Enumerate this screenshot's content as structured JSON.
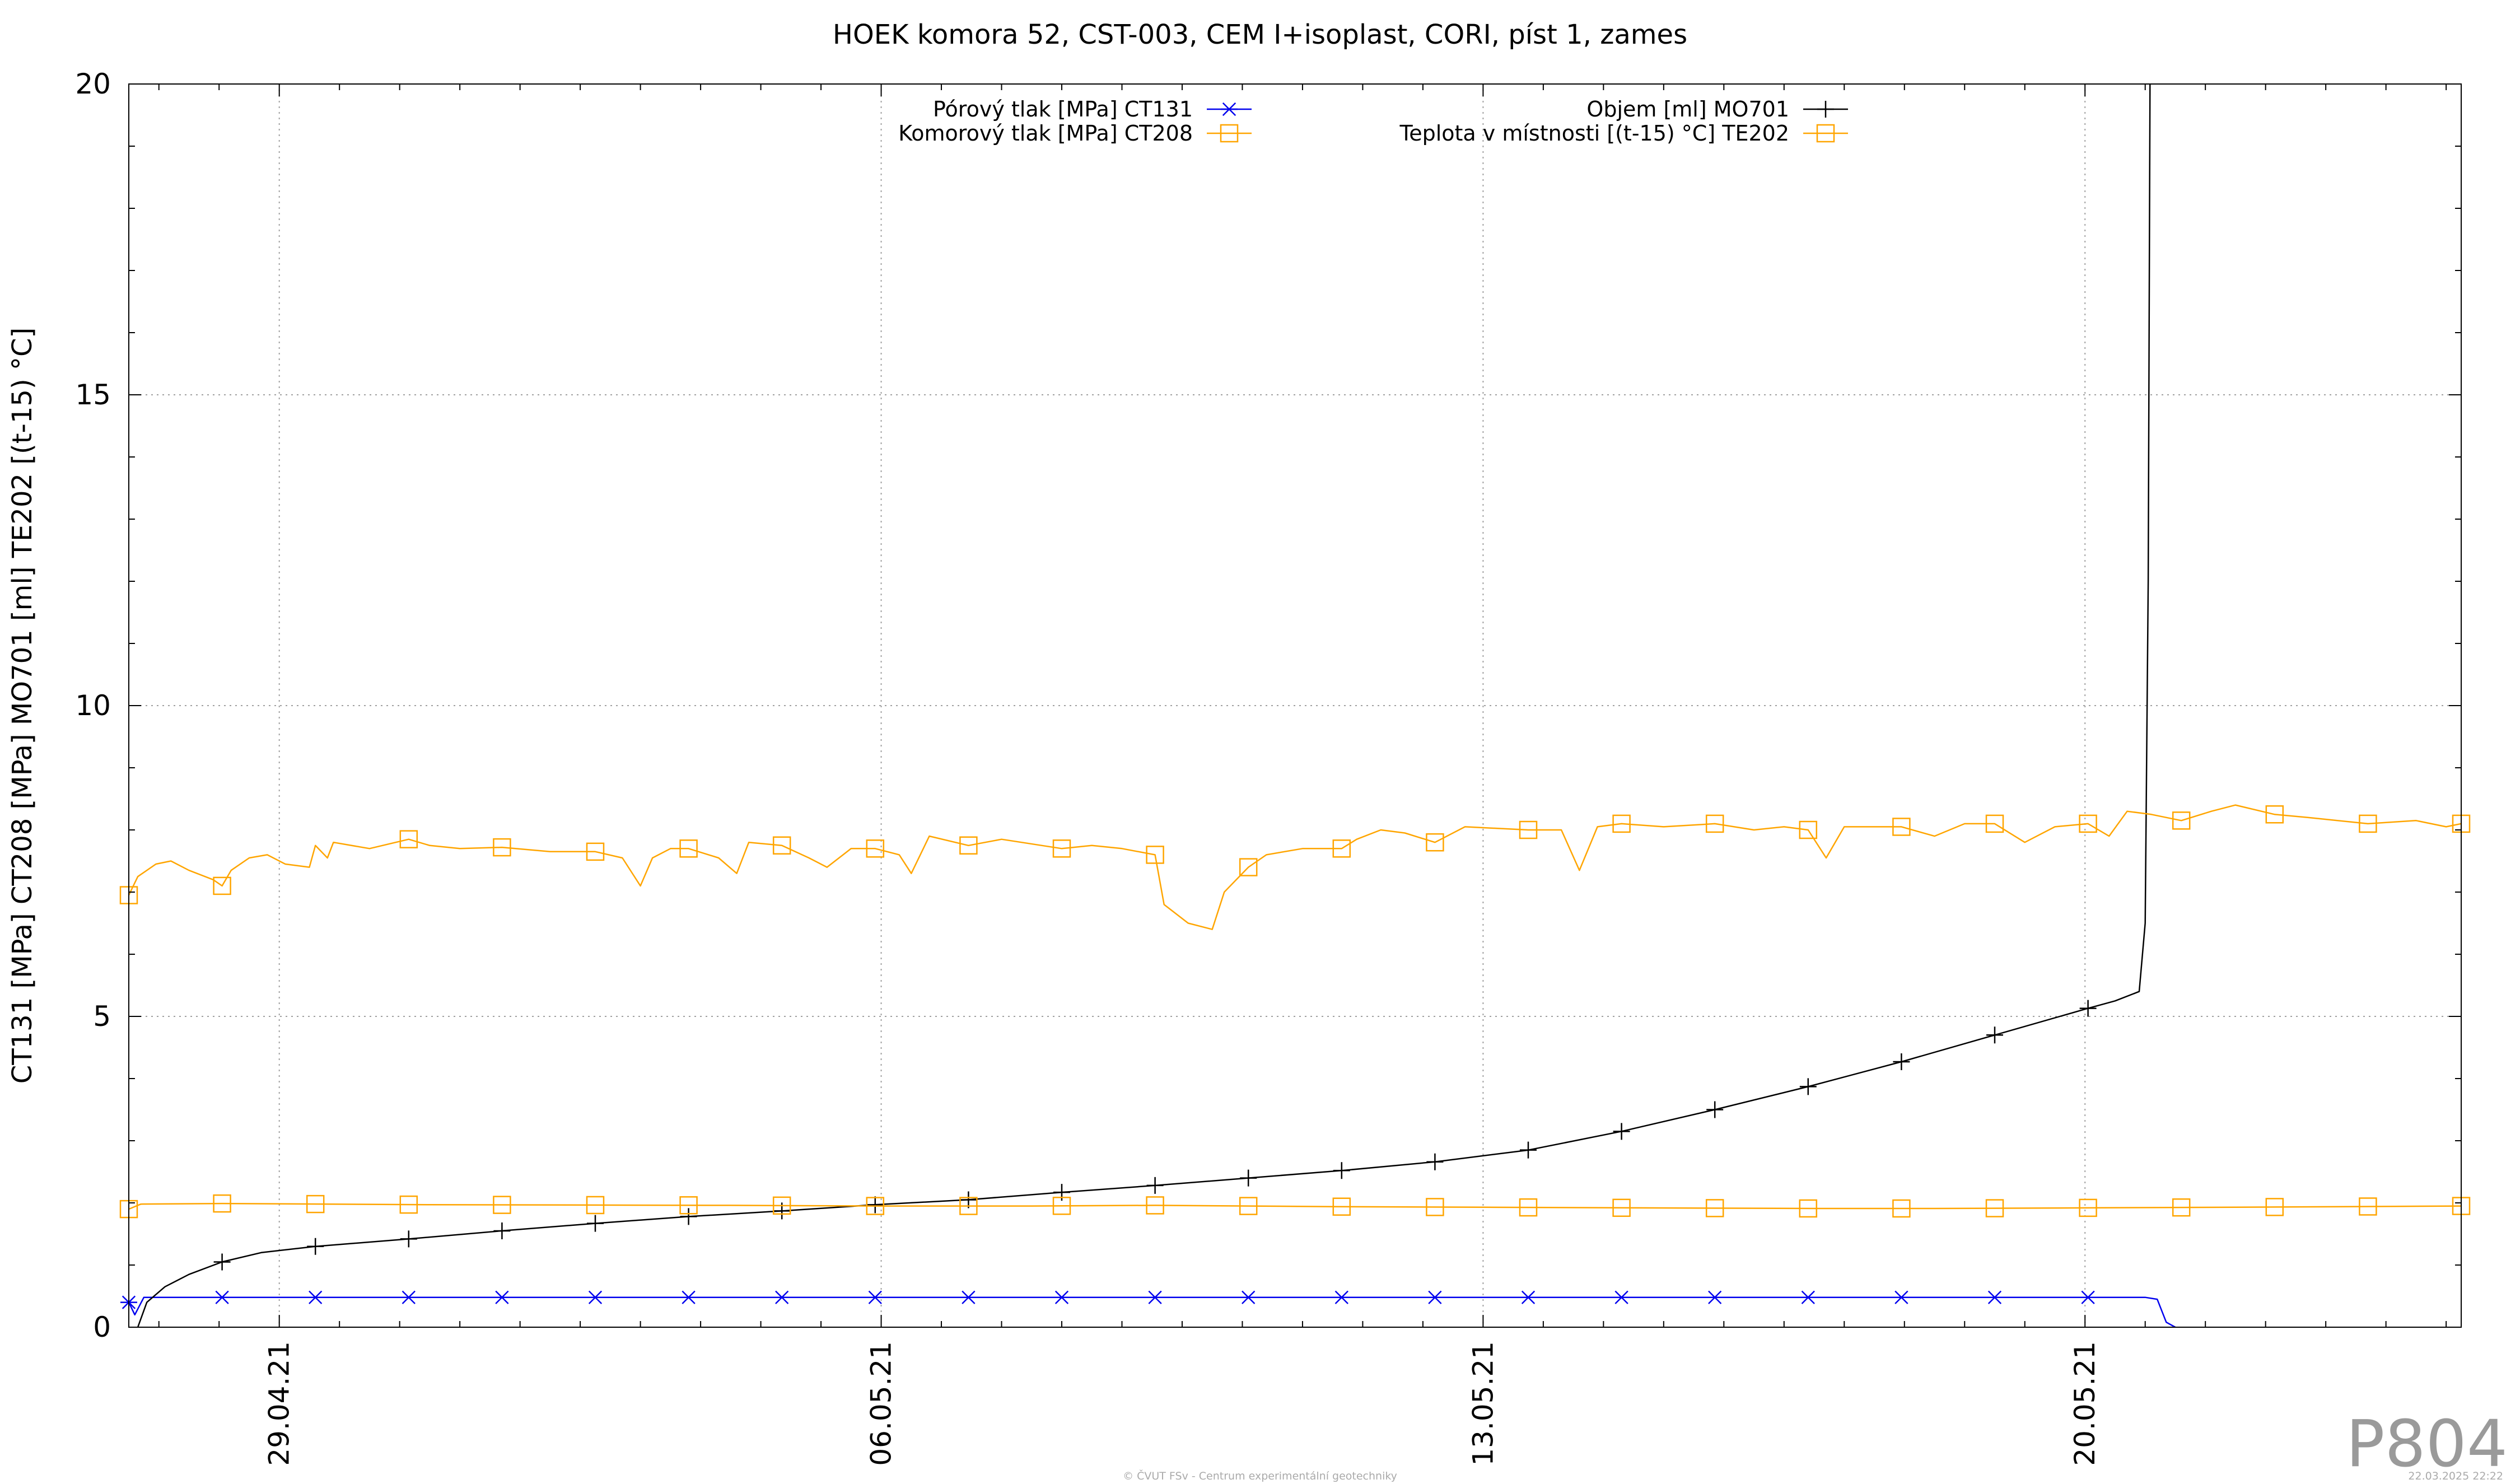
{
  "chart_data": {
    "type": "line",
    "title": "HOEK komora 52, CST-003, CEM I+isoplast, CORI, píst 1, zames",
    "ylabel": "CT131 [MPa] CT208 [MPa] MO701 [ml] TE202 [(t-15) °C]",
    "xlabel": "",
    "x_unit": "days",
    "xlim": [
      0,
      38.75
    ],
    "ylim": [
      0,
      20
    ],
    "y_ticks": [
      0,
      5,
      10,
      15,
      20
    ],
    "x_ticks": [
      {
        "label": "29.04.21",
        "x": 2.5
      },
      {
        "label": "06.05.21",
        "x": 12.5
      },
      {
        "label": "13.05.21",
        "x": 22.5
      },
      {
        "label": "20.05.21",
        "x": 32.5
      }
    ],
    "grid": true,
    "legend_position": "top",
    "series": [
      {
        "name": "Pórový tlak [MPa] CT131",
        "color": "#0000ee",
        "marker": "asterisk",
        "points": [
          [
            0,
            0.4
          ],
          [
            0.1,
            0.2
          ],
          [
            0.25,
            0.48
          ],
          [
            1,
            0.48
          ],
          [
            5,
            0.48
          ],
          [
            10,
            0.48
          ],
          [
            15,
            0.48
          ],
          [
            20,
            0.48
          ],
          [
            25,
            0.48
          ],
          [
            30,
            0.48
          ],
          [
            33.5,
            0.48
          ],
          [
            33.7,
            0.45
          ],
          [
            33.85,
            0.08
          ],
          [
            34.0,
            0.0
          ]
        ],
        "markers_x": [
          0,
          1.55,
          3.1,
          4.65,
          6.2,
          7.75,
          9.3,
          10.85,
          12.4,
          13.95,
          15.5,
          17.05,
          18.6,
          20.15,
          21.7,
          23.25,
          24.8,
          26.35,
          27.9,
          29.45,
          31.0,
          32.55
        ]
      },
      {
        "name": "Objem [ml] MO701",
        "color": "#000000",
        "marker": "plus",
        "points": [
          [
            0.15,
            0.0
          ],
          [
            0.3,
            0.4
          ],
          [
            0.6,
            0.65
          ],
          [
            1.0,
            0.85
          ],
          [
            1.55,
            1.05
          ],
          [
            2.2,
            1.2
          ],
          [
            3.1,
            1.3
          ],
          [
            4.65,
            1.42
          ],
          [
            6.2,
            1.55
          ],
          [
            7.75,
            1.67
          ],
          [
            9.3,
            1.78
          ],
          [
            10.85,
            1.87
          ],
          [
            12.4,
            1.97
          ],
          [
            13.95,
            2.05
          ],
          [
            15.5,
            2.17
          ],
          [
            17.05,
            2.28
          ],
          [
            18.6,
            2.4
          ],
          [
            20.15,
            2.52
          ],
          [
            21.7,
            2.66
          ],
          [
            23.25,
            2.85
          ],
          [
            24.8,
            3.15
          ],
          [
            26.35,
            3.5
          ],
          [
            27.9,
            3.87
          ],
          [
            29.45,
            4.27
          ],
          [
            31.0,
            4.7
          ],
          [
            32.55,
            5.13
          ],
          [
            33.0,
            5.25
          ],
          [
            33.4,
            5.4
          ],
          [
            33.5,
            6.5
          ],
          [
            33.55,
            12.0
          ],
          [
            33.58,
            20.0
          ]
        ],
        "markers_x": [
          1.55,
          3.1,
          4.65,
          6.2,
          7.75,
          9.3,
          10.85,
          12.4,
          13.95,
          15.5,
          17.05,
          18.6,
          20.15,
          21.7,
          23.25,
          24.8,
          26.35,
          27.9,
          29.45,
          31.0,
          32.55
        ]
      },
      {
        "name": "Komorový tlak [MPa] CT208",
        "color": "#ffa500",
        "marker": "square",
        "points": [
          [
            0,
            1.9
          ],
          [
            0.2,
            1.98
          ],
          [
            1.55,
            1.99
          ],
          [
            5,
            1.97
          ],
          [
            10,
            1.96
          ],
          [
            12.4,
            1.95
          ],
          [
            15,
            1.95
          ],
          [
            17.05,
            1.96
          ],
          [
            20,
            1.94
          ],
          [
            22.5,
            1.93
          ],
          [
            25,
            1.92
          ],
          [
            28,
            1.91
          ],
          [
            30,
            1.91
          ],
          [
            32.55,
            1.92
          ],
          [
            35,
            1.93
          ],
          [
            38.75,
            1.95
          ]
        ],
        "markers_x": [
          0,
          1.55,
          3.1,
          4.65,
          6.2,
          7.75,
          9.3,
          10.85,
          12.4,
          13.95,
          15.5,
          17.05,
          18.6,
          20.15,
          21.7,
          23.25,
          24.8,
          26.35,
          27.9,
          29.45,
          31.0,
          32.55,
          34.1,
          35.65,
          37.2,
          38.75
        ]
      },
      {
        "name": "Teplota v místnosti [(t-15) °C] TE202",
        "color": "#ffa500",
        "marker": "square",
        "points": [
          [
            0,
            6.95
          ],
          [
            0.15,
            7.25
          ],
          [
            0.45,
            7.45
          ],
          [
            0.7,
            7.5
          ],
          [
            1.0,
            7.35
          ],
          [
            1.4,
            7.2
          ],
          [
            1.55,
            7.1
          ],
          [
            1.7,
            7.35
          ],
          [
            2.0,
            7.55
          ],
          [
            2.3,
            7.6
          ],
          [
            2.6,
            7.45
          ],
          [
            3.0,
            7.4
          ],
          [
            3.1,
            7.75
          ],
          [
            3.3,
            7.55
          ],
          [
            3.4,
            7.8
          ],
          [
            4.0,
            7.7
          ],
          [
            4.65,
            7.85
          ],
          [
            5.0,
            7.75
          ],
          [
            5.5,
            7.7
          ],
          [
            6.2,
            7.72
          ],
          [
            7.0,
            7.65
          ],
          [
            7.75,
            7.65
          ],
          [
            8.2,
            7.55
          ],
          [
            8.5,
            7.1
          ],
          [
            8.7,
            7.55
          ],
          [
            9.0,
            7.7
          ],
          [
            9.3,
            7.7
          ],
          [
            9.8,
            7.55
          ],
          [
            10.1,
            7.3
          ],
          [
            10.3,
            7.8
          ],
          [
            10.85,
            7.75
          ],
          [
            11.3,
            7.55
          ],
          [
            11.6,
            7.4
          ],
          [
            12.0,
            7.7
          ],
          [
            12.4,
            7.7
          ],
          [
            12.8,
            7.6
          ],
          [
            13.0,
            7.3
          ],
          [
            13.3,
            7.9
          ],
          [
            13.95,
            7.75
          ],
          [
            14.5,
            7.85
          ],
          [
            15.5,
            7.7
          ],
          [
            16.0,
            7.75
          ],
          [
            16.5,
            7.7
          ],
          [
            17.05,
            7.6
          ],
          [
            17.2,
            6.8
          ],
          [
            17.6,
            6.5
          ],
          [
            18.0,
            6.4
          ],
          [
            18.2,
            7.0
          ],
          [
            18.6,
            7.4
          ],
          [
            18.9,
            7.6
          ],
          [
            19.5,
            7.7
          ],
          [
            20.15,
            7.7
          ],
          [
            20.4,
            7.85
          ],
          [
            20.8,
            8.0
          ],
          [
            21.2,
            7.95
          ],
          [
            21.7,
            7.8
          ],
          [
            22.2,
            8.05
          ],
          [
            23.25,
            8.0
          ],
          [
            23.8,
            8.0
          ],
          [
            24.1,
            7.35
          ],
          [
            24.4,
            8.05
          ],
          [
            24.8,
            8.1
          ],
          [
            25.5,
            8.05
          ],
          [
            26.35,
            8.1
          ],
          [
            27.0,
            8.0
          ],
          [
            27.5,
            8.05
          ],
          [
            27.9,
            8.0
          ],
          [
            28.2,
            7.55
          ],
          [
            28.5,
            8.05
          ],
          [
            29.45,
            8.05
          ],
          [
            30.0,
            7.9
          ],
          [
            30.5,
            8.1
          ],
          [
            31.0,
            8.1
          ],
          [
            31.5,
            7.8
          ],
          [
            32.0,
            8.05
          ],
          [
            32.55,
            8.1
          ],
          [
            32.9,
            7.9
          ],
          [
            33.2,
            8.3
          ],
          [
            33.6,
            8.25
          ],
          [
            34.1,
            8.15
          ],
          [
            34.6,
            8.3
          ],
          [
            35.0,
            8.4
          ],
          [
            35.65,
            8.25
          ],
          [
            36.2,
            8.2
          ],
          [
            37.2,
            8.1
          ],
          [
            38.0,
            8.15
          ],
          [
            38.5,
            8.05
          ],
          [
            38.75,
            8.1
          ]
        ],
        "markers_x": [
          0,
          1.55,
          4.65,
          6.2,
          7.75,
          9.3,
          10.85,
          12.4,
          13.95,
          15.5,
          17.05,
          18.6,
          20.15,
          21.7,
          23.25,
          24.8,
          26.35,
          27.9,
          29.45,
          31.0,
          32.55,
          34.1,
          35.65,
          37.2,
          38.75
        ]
      }
    ]
  },
  "watermark": "P804",
  "footer_left": "© ČVUT FSv - Centrum experimentální geotechniky",
  "footer_right": "22.03.2025 22:22"
}
